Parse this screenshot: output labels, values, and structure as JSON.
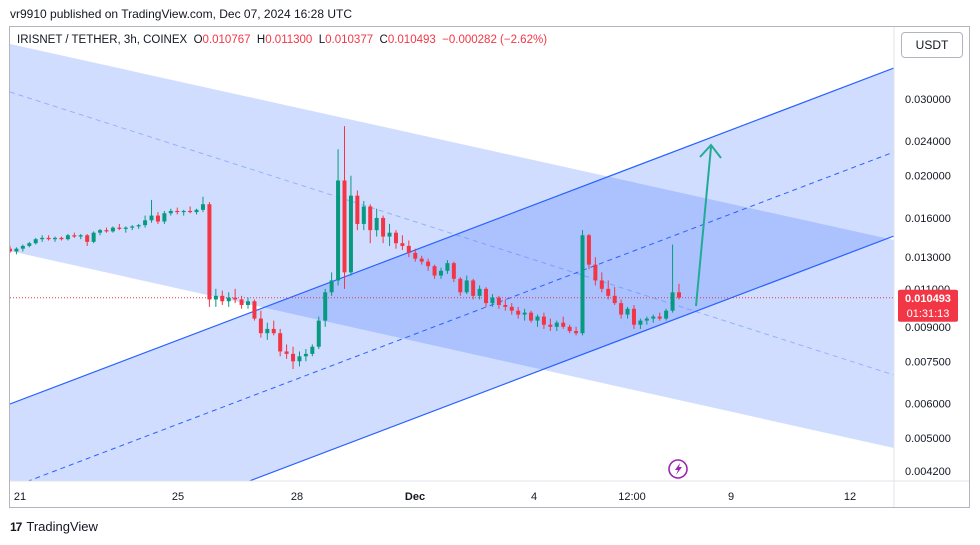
{
  "header": {
    "published": "vr9910 published on TradingView.com, Dec 07, 2024 16:28 UTC"
  },
  "legend": {
    "symbol": "IRISNET / TETHER, 3h, COINEX",
    "o_label": "O",
    "o_value": "0.010767",
    "h_label": "H",
    "h_value": "0.011300",
    "l_label": "L",
    "l_value": "0.010377",
    "c_label": "C",
    "c_value": "0.010493",
    "change": "−0.000282 (−2.62%)"
  },
  "currency_button": "USDT",
  "footer": {
    "logo": "17",
    "brand": "TradingView"
  },
  "colors": {
    "up": "#089981",
    "down": "#f23645",
    "channel": "#2962ff",
    "fill": "#2962ff",
    "arrow": "#22ab94"
  },
  "icons": {
    "flash": "lightning-icon",
    "logo": "tradingview-logo-icon"
  },
  "chart_data": {
    "type": "candlestick",
    "y_scale": "log",
    "y_ticks": [
      "0.030000",
      "0.024000",
      "0.020000",
      "0.016000",
      "0.013000",
      "0.011000",
      "0.009000",
      "0.007500",
      "0.006000",
      "0.005000",
      "0.004200"
    ],
    "x_ticks": [
      "21",
      "25",
      "28",
      "Dec",
      "4",
      "12:00",
      "9",
      "12"
    ],
    "last_price_label": "0.010493",
    "countdown_label": "01:31:13",
    "candles": [
      [
        0.0136,
        0.0138,
        0.0133,
        0.0134
      ],
      [
        0.0134,
        0.0137,
        0.0132,
        0.0136
      ],
      [
        0.0136,
        0.0139,
        0.0134,
        0.0138
      ],
      [
        0.0138,
        0.0141,
        0.0137,
        0.014
      ],
      [
        0.014,
        0.0144,
        0.0139,
        0.0143
      ],
      [
        0.0143,
        0.0146,
        0.0141,
        0.0144
      ],
      [
        0.0144,
        0.0146,
        0.0142,
        0.0143
      ],
      [
        0.0143,
        0.0145,
        0.0141,
        0.0144
      ],
      [
        0.0144,
        0.0145,
        0.0142,
        0.0143
      ],
      [
        0.0143,
        0.0147,
        0.0142,
        0.0146
      ],
      [
        0.0146,
        0.0148,
        0.0144,
        0.0145
      ],
      [
        0.0145,
        0.0147,
        0.0143,
        0.0146
      ],
      [
        0.0146,
        0.0147,
        0.0138,
        0.0141
      ],
      [
        0.0141,
        0.0149,
        0.014,
        0.0148
      ],
      [
        0.0148,
        0.0151,
        0.0146,
        0.015
      ],
      [
        0.015,
        0.0152,
        0.0148,
        0.0149
      ],
      [
        0.0149,
        0.0153,
        0.0148,
        0.0152
      ],
      [
        0.0152,
        0.0155,
        0.015,
        0.0151
      ],
      [
        0.0151,
        0.0153,
        0.0148,
        0.0152
      ],
      [
        0.0152,
        0.0154,
        0.015,
        0.0153
      ],
      [
        0.0153,
        0.0155,
        0.0151,
        0.0154
      ],
      [
        0.0154,
        0.0162,
        0.0152,
        0.0158
      ],
      [
        0.0158,
        0.0176,
        0.0156,
        0.0162
      ],
      [
        0.0162,
        0.0165,
        0.0155,
        0.0157
      ],
      [
        0.0157,
        0.0166,
        0.0155,
        0.0164
      ],
      [
        0.0164,
        0.0168,
        0.0162,
        0.0166
      ],
      [
        0.0166,
        0.0169,
        0.0163,
        0.0165
      ],
      [
        0.0165,
        0.0167,
        0.0162,
        0.0166
      ],
      [
        0.0166,
        0.017,
        0.0164,
        0.0165
      ],
      [
        0.0165,
        0.0168,
        0.0163,
        0.0167
      ],
      [
        0.0167,
        0.0179,
        0.0165,
        0.0172
      ],
      [
        0.0172,
        0.0174,
        0.01,
        0.0104
      ],
      [
        0.0104,
        0.011,
        0.01,
        0.0106
      ],
      [
        0.0106,
        0.0109,
        0.0101,
        0.0103
      ],
      [
        0.0103,
        0.0108,
        0.01,
        0.0105
      ],
      [
        0.0105,
        0.011,
        0.0102,
        0.0104
      ],
      [
        0.0104,
        0.0106,
        0.0099,
        0.0101
      ],
      [
        0.0101,
        0.0105,
        0.0099,
        0.0103
      ],
      [
        0.0103,
        0.0104,
        0.0093,
        0.0094
      ],
      [
        0.0094,
        0.0098,
        0.0085,
        0.0087
      ],
      [
        0.0087,
        0.0092,
        0.0084,
        0.0089
      ],
      [
        0.0089,
        0.0093,
        0.0086,
        0.0087
      ],
      [
        0.0087,
        0.0089,
        0.0077,
        0.0079
      ],
      [
        0.0079,
        0.0082,
        0.0076,
        0.0078
      ],
      [
        0.0078,
        0.0081,
        0.0072,
        0.0075
      ],
      [
        0.0075,
        0.0079,
        0.0073,
        0.0077
      ],
      [
        0.0077,
        0.008,
        0.0075,
        0.0078
      ],
      [
        0.0078,
        0.0082,
        0.0077,
        0.0081
      ],
      [
        0.0081,
        0.0095,
        0.008,
        0.0093
      ],
      [
        0.0093,
        0.011,
        0.009,
        0.0108
      ],
      [
        0.0108,
        0.012,
        0.0106,
        0.0115
      ],
      [
        0.0115,
        0.023,
        0.0112,
        0.0195
      ],
      [
        0.0195,
        0.026,
        0.011,
        0.012
      ],
      [
        0.012,
        0.02,
        0.0118,
        0.018
      ],
      [
        0.018,
        0.0185,
        0.015,
        0.0155
      ],
      [
        0.0155,
        0.0175,
        0.015,
        0.017
      ],
      [
        0.017,
        0.0172,
        0.014,
        0.015
      ],
      [
        0.015,
        0.0168,
        0.0145,
        0.016
      ],
      [
        0.016,
        0.0162,
        0.014,
        0.0145
      ],
      [
        0.0145,
        0.0155,
        0.0138,
        0.0148
      ],
      [
        0.0148,
        0.015,
        0.0136,
        0.014
      ],
      [
        0.014,
        0.0146,
        0.0135,
        0.0138
      ],
      [
        0.0138,
        0.0142,
        0.013,
        0.0133
      ],
      [
        0.0133,
        0.0136,
        0.0127,
        0.0129
      ],
      [
        0.0129,
        0.0131,
        0.0125,
        0.0127
      ],
      [
        0.0127,
        0.0129,
        0.0121,
        0.0124
      ],
      [
        0.0124,
        0.0125,
        0.0116,
        0.0118
      ],
      [
        0.0118,
        0.0123,
        0.0116,
        0.0121
      ],
      [
        0.0121,
        0.0128,
        0.0119,
        0.0126
      ],
      [
        0.0126,
        0.0127,
        0.0114,
        0.0116
      ],
      [
        0.0116,
        0.0117,
        0.0106,
        0.0108
      ],
      [
        0.0108,
        0.0118,
        0.0107,
        0.0115
      ],
      [
        0.0115,
        0.0116,
        0.0104,
        0.0106
      ],
      [
        0.0106,
        0.0112,
        0.0104,
        0.011
      ],
      [
        0.011,
        0.0111,
        0.01,
        0.0102
      ],
      [
        0.0102,
        0.0107,
        0.01,
        0.0105
      ],
      [
        0.0105,
        0.0106,
        0.0099,
        0.0101
      ],
      [
        0.0101,
        0.0104,
        0.0098,
        0.01
      ],
      [
        0.01,
        0.0102,
        0.0096,
        0.0098
      ],
      [
        0.0098,
        0.01,
        0.0094,
        0.0096
      ],
      [
        0.0096,
        0.0099,
        0.0093,
        0.0097
      ],
      [
        0.0097,
        0.0098,
        0.0092,
        0.0093
      ],
      [
        0.0093,
        0.0096,
        0.009,
        0.0095
      ],
      [
        0.0095,
        0.0097,
        0.0089,
        0.0091
      ],
      [
        0.0091,
        0.0094,
        0.0088,
        0.009
      ],
      [
        0.009,
        0.0093,
        0.0088,
        0.0092
      ],
      [
        0.0092,
        0.0095,
        0.0089,
        0.009
      ],
      [
        0.009,
        0.0091,
        0.0087,
        0.0088
      ],
      [
        0.0088,
        0.009,
        0.0086,
        0.0087
      ],
      [
        0.0087,
        0.015,
        0.0086,
        0.0146
      ],
      [
        0.0146,
        0.0147,
        0.0122,
        0.0125
      ],
      [
        0.0125,
        0.013,
        0.0112,
        0.0115
      ],
      [
        0.0115,
        0.012,
        0.0108,
        0.011
      ],
      [
        0.011,
        0.0115,
        0.0104,
        0.0106
      ],
      [
        0.0106,
        0.0111,
        0.0101,
        0.0102
      ],
      [
        0.0102,
        0.0104,
        0.0094,
        0.0096
      ],
      [
        0.0096,
        0.01,
        0.0094,
        0.0099
      ],
      [
        0.0099,
        0.0101,
        0.0089,
        0.0091
      ],
      [
        0.0091,
        0.0094,
        0.0089,
        0.0093
      ],
      [
        0.0093,
        0.0095,
        0.0091,
        0.0094
      ],
      [
        0.0094,
        0.0096,
        0.0092,
        0.0095
      ],
      [
        0.0095,
        0.0097,
        0.0093,
        0.0094
      ],
      [
        0.0094,
        0.0099,
        0.0093,
        0.0098
      ],
      [
        0.0098,
        0.0139,
        0.0097,
        0.0108
      ],
      [
        0.0108,
        0.0113,
        0.0104,
        0.0105
      ]
    ],
    "drawings": {
      "ascending_channel": {
        "style": "filled parallel channel with dashed midline"
      },
      "descending_channel": {
        "style": "filled parallel channel with dashed midline"
      },
      "arrow": {
        "direction": "up"
      }
    }
  }
}
